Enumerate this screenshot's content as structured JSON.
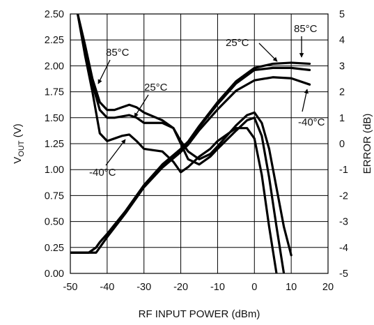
{
  "chart_data": {
    "type": "line",
    "x": {
      "label": "RF INPUT POWER (dBm)",
      "range": [
        -50,
        20
      ],
      "ticks": [
        "-50",
        "-40",
        "-30",
        "-20",
        "-10",
        "0",
        "10",
        "20"
      ]
    },
    "y_left": {
      "label_main": "V",
      "label_sub": "OUT",
      "label_unit": " (V)",
      "range": [
        0,
        2.5
      ],
      "ticks": [
        "0.00",
        "0.25",
        "0.50",
        "0.75",
        "1.00",
        "1.25",
        "1.50",
        "1.75",
        "2.00",
        "2.25",
        "2.50"
      ]
    },
    "y_right": {
      "label": "ERROR (dB)",
      "range": [
        -5,
        5
      ],
      "ticks": [
        "-5",
        "-4",
        "-3",
        "-2",
        "-1",
        "0",
        "1",
        "2",
        "3",
        "4",
        "5"
      ]
    },
    "grid": true,
    "legend": "none",
    "annotations": [
      "85°C",
      "25°C",
      "-40°C",
      "25°C",
      "85°C",
      "-40°C"
    ],
    "series": [
      {
        "group": "vout",
        "axis": "left",
        "label": "85°C",
        "x": [
          -50,
          -45,
          -43,
          -42,
          -40,
          -35,
          -30,
          -25,
          -20,
          -18,
          -15,
          -10,
          -5,
          0,
          5,
          10,
          15
        ],
        "y": [
          0.2,
          0.2,
          0.25,
          0.3,
          0.38,
          0.6,
          0.85,
          1.05,
          1.2,
          1.27,
          1.42,
          1.65,
          1.85,
          1.98,
          2.02,
          2.03,
          2.02
        ]
      },
      {
        "group": "vout",
        "axis": "left",
        "label": "25°C",
        "x": [
          -50,
          -45,
          -43,
          -42,
          -40,
          -35,
          -30,
          -25,
          -20,
          -18,
          -15,
          -10,
          -5,
          0,
          5,
          10,
          15
        ],
        "y": [
          0.2,
          0.2,
          0.25,
          0.3,
          0.38,
          0.6,
          0.85,
          1.04,
          1.19,
          1.26,
          1.41,
          1.63,
          1.83,
          1.96,
          1.98,
          1.98,
          1.96
        ]
      },
      {
        "group": "vout",
        "axis": "left",
        "label": "-40°C",
        "x": [
          -50,
          -45,
          -43,
          -42,
          -40,
          -35,
          -30,
          -25,
          -20,
          -18,
          -15,
          -10,
          -5,
          0,
          5,
          10,
          15
        ],
        "y": [
          0.2,
          0.2,
          0.2,
          0.25,
          0.35,
          0.58,
          0.83,
          1.02,
          1.17,
          1.24,
          1.38,
          1.58,
          1.76,
          1.86,
          1.89,
          1.88,
          1.82
        ]
      },
      {
        "group": "error",
        "axis": "right",
        "label": "85°C",
        "x": [
          -48,
          -46,
          -44,
          -42,
          -40,
          -38,
          -36,
          -34,
          -32,
          -30,
          -25,
          -22,
          -20,
          -18,
          -15,
          -12,
          -10,
          -5,
          -2,
          0,
          2,
          4,
          6,
          8,
          10
        ],
        "y": [
          5,
          3.8,
          2.5,
          1.6,
          1.3,
          1.3,
          1.4,
          1.5,
          1.4,
          1.2,
          0.9,
          0.6,
          0.1,
          -0.3,
          -0.6,
          -0.4,
          -0.1,
          0.7,
          1.1,
          1.2,
          0.8,
          -0.2,
          -1.7,
          -3.2,
          -4.3
        ]
      },
      {
        "group": "error",
        "axis": "right",
        "label": "25°C",
        "x": [
          -48,
          -46,
          -44,
          -42,
          -40,
          -38,
          -36,
          -34,
          -32,
          -30,
          -25,
          -22,
          -20,
          -18,
          -15,
          -12,
          -10,
          -5,
          -2,
          0,
          2,
          4,
          6,
          8
        ],
        "y": [
          5,
          3.6,
          2.3,
          1.3,
          1.0,
          1.0,
          1.05,
          1.1,
          1.0,
          0.8,
          0.8,
          0.6,
          0.0,
          -0.6,
          -0.8,
          -0.5,
          -0.2,
          0.5,
          0.9,
          1.0,
          0.3,
          -1.3,
          -3.2,
          -5.0
        ]
      },
      {
        "group": "error",
        "axis": "right",
        "label": "-40°C",
        "x": [
          -48,
          -46,
          -44,
          -42,
          -40,
          -38,
          -36,
          -34,
          -32,
          -30,
          -25,
          -22,
          -20,
          -18,
          -15,
          -12,
          -10,
          -5,
          -2,
          0,
          2,
          4,
          6
        ],
        "y": [
          5,
          3.4,
          2.0,
          0.4,
          0.1,
          0.2,
          0.3,
          0.35,
          0.1,
          -0.2,
          -0.3,
          -0.7,
          -1.1,
          -0.9,
          -0.5,
          -0.2,
          0.1,
          0.6,
          0.6,
          0.2,
          -1.2,
          -3.2,
          -5.0
        ]
      }
    ]
  }
}
